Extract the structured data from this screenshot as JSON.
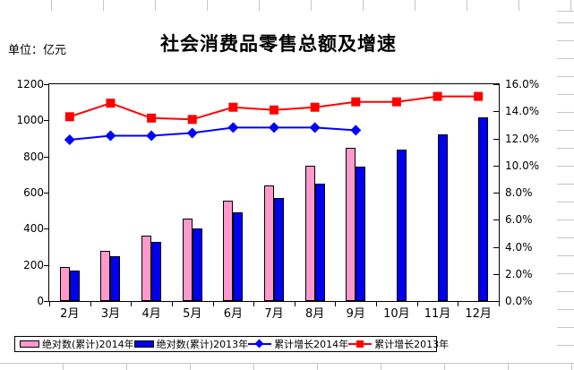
{
  "sheet": {
    "background": "#FFFFFF",
    "grid_color": "#C6C6C6"
  },
  "chart_data": {
    "type": "bar",
    "subtype": "combo-bar-line-two-axes",
    "title": "社会消费品零售总额及增速",
    "unit_label": "单位：亿元",
    "categories": [
      "2月",
      "3月",
      "4月",
      "5月",
      "6月",
      "7月",
      "8月",
      "9月",
      "10月",
      "11月",
      "12月"
    ],
    "series": [
      {
        "name": "绝对数(累计)2014年",
        "type": "bar",
        "axis": "left",
        "color": "#FF99CC",
        "values": [
          190,
          280,
          363,
          454,
          554,
          638,
          748,
          850,
          null,
          null,
          null
        ]
      },
      {
        "name": "绝对数(累计)2013年",
        "type": "bar",
        "axis": "left",
        "color": "#0000EE",
        "values": [
          168,
          247,
          325,
          404,
          492,
          570,
          650,
          745,
          839,
          924,
          1015
        ]
      },
      {
        "name": "累计增长2014年",
        "type": "line",
        "marker": "diamond",
        "axis": "right",
        "color": "#0000FF",
        "values": [
          11.9,
          12.2,
          12.2,
          12.4,
          12.8,
          12.8,
          12.8,
          12.6,
          null,
          null,
          null
        ]
      },
      {
        "name": "累计增长2013年",
        "type": "line",
        "marker": "square",
        "axis": "right",
        "color": "#FF0000",
        "values": [
          13.6,
          14.6,
          13.5,
          13.4,
          14.3,
          14.1,
          14.3,
          14.7,
          14.7,
          15.1,
          15.1
        ]
      }
    ],
    "left_axis": {
      "min": 0,
      "max": 1200,
      "step": 200,
      "tick_labels": [
        "0",
        "200",
        "400",
        "600",
        "800",
        "1000",
        "1200"
      ]
    },
    "right_axis": {
      "min": 0,
      "max": 16,
      "step": 2,
      "tick_labels": [
        "0.0%",
        "2.0%",
        "4.0%",
        "6.0%",
        "8.0%",
        "10.0%",
        "12.0%",
        "14.0%",
        "16.0%"
      ]
    },
    "legend_position": "bottom",
    "gridlines": "none",
    "plot_border_color": "#000000",
    "axis_text_color": "#000000"
  }
}
